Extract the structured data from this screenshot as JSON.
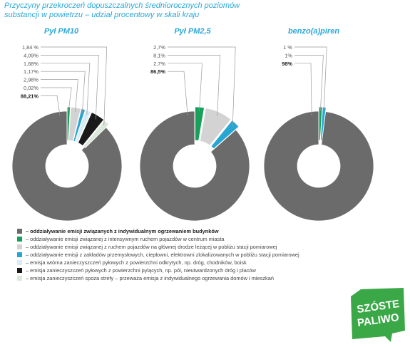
{
  "title_line1": "Przyczyny przekroczeń dopuszczalnych średniorocznych poziomów",
  "title_line2": "substancji w powietrzu – udział procentowy w skali kraju",
  "chart_data": [
    {
      "type": "pie",
      "title": "Pył PM10",
      "slices": [
        {
          "category": 0,
          "label": "88,21%",
          "value": 88.21
        },
        {
          "category": 1,
          "label": "0,02%",
          "value": 0.02
        },
        {
          "category": 2,
          "label": "2,98%",
          "value": 2.98
        },
        {
          "category": 3,
          "label": "1,17%",
          "value": 1.17
        },
        {
          "category": 4,
          "label": "1,68%",
          "value": 1.68
        },
        {
          "category": 5,
          "label": "4,09%",
          "value": 4.09
        },
        {
          "category": 6,
          "label": "1,84 %",
          "value": 1.84
        }
      ]
    },
    {
      "type": "pie",
      "title": "Pył PM2,5",
      "slices": [
        {
          "category": 0,
          "label": "86,5%",
          "value": 86.5
        },
        {
          "category": 1,
          "label": "2,7%",
          "value": 2.7
        },
        {
          "category": 2,
          "label": "8,1%",
          "value": 8.1
        },
        {
          "category": 3,
          "label": "2,7%",
          "value": 2.7
        }
      ]
    },
    {
      "type": "pie",
      "title": "benzo(a)piren",
      "slices": [
        {
          "category": 0,
          "label": "98%",
          "value": 98
        },
        {
          "category": 1,
          "label": "1%",
          "value": 1
        },
        {
          "category": 3,
          "label": "1 %",
          "value": 1
        }
      ]
    }
  ],
  "legend": [
    {
      "text": "– oddziaływanie emisji związanych z indywidualnym ogrzewaniem budynków",
      "color": "#6b6b6b",
      "bold": true
    },
    {
      "text": "– oddziaływanie emisji związanej z intensywnym ruchem pojazdów w centrum miasta",
      "color": "#16a05a",
      "bold": false
    },
    {
      "text": "– oddziaływanie emisji związanej z ruchem pojazdów na głównej drodze leżącej w pobliżu stacji pomiarowej",
      "color": "#d3d3d3",
      "bold": false
    },
    {
      "text": "– oddziaływanie emisji z zakładów przemysłowych, ciepłowni, elektrowni zlokalizowanych w pobliżu stacji pomiarowej",
      "color": "#27a6d3",
      "bold": false
    },
    {
      "text": "– emisja wtórna zanieczyszczeń pyłowych z powierzchni odkrytych, np. dróg, chodników, boisk",
      "color": "#d8ecf5",
      "bold": false
    },
    {
      "text": "– emisja zanieczyszczeń pyłowych z powierzchni pylących, np. pól, nieutwardzonych dróg i placów",
      "color": "#1a1a1a",
      "bold": false
    },
    {
      "text": "– emisja zanieczyszczeń spoza strefy – przeważa emisja z indywidualnego ogrzewania domów i mieszkań",
      "color": "#dde8dc",
      "bold": false
    }
  ],
  "logo": {
    "line1": "SZÓSTE",
    "line2": "PALIWO",
    "color": "#3aa847"
  }
}
